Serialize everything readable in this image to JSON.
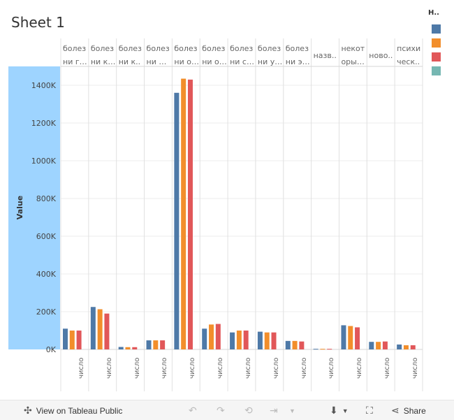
{
  "title": "Sheet 1",
  "legend": {
    "title": "Н..",
    "colors": [
      "#4e79a7",
      "#f28e2b",
      "#e15759",
      "#76b7b2"
    ]
  },
  "chart_data": {
    "type": "bar",
    "ylabel": "Value",
    "ylim": [
      0,
      1500000
    ],
    "yticks": [
      {
        "value": 0,
        "label": "0K"
      },
      {
        "value": 200000,
        "label": "200K"
      },
      {
        "value": 400000,
        "label": "400K"
      },
      {
        "value": 600000,
        "label": "600K"
      },
      {
        "value": 800000,
        "label": "800K"
      },
      {
        "value": 1000000,
        "label": "1000K"
      },
      {
        "value": 1200000,
        "label": "1200K"
      },
      {
        "value": 1400000,
        "label": "1400K"
      }
    ],
    "series_colors": [
      "#4e79a7",
      "#f28e2b",
      "#e15759"
    ],
    "panels": [
      {
        "header": [
          "болез",
          "ни гл.."
        ],
        "category": "число",
        "values": [
          110000,
          100000,
          100000
        ]
      },
      {
        "header": [
          "болез",
          "ни ко.."
        ],
        "category": "число",
        "values": [
          225000,
          213000,
          190000
        ]
      },
      {
        "header": [
          "болез",
          "ни к.."
        ],
        "category": "число",
        "values": [
          13000,
          12000,
          12000
        ]
      },
      {
        "header": [
          "болез",
          "ни не.."
        ],
        "category": "число",
        "values": [
          48000,
          48000,
          48000
        ]
      },
      {
        "header": [
          "болез",
          "ни ор.."
        ],
        "category": "число",
        "values": [
          1360000,
          1435000,
          1430000
        ]
      },
      {
        "header": [
          "болез",
          "ни ор.."
        ],
        "category": "число",
        "values": [
          110000,
          132000,
          135000
        ]
      },
      {
        "header": [
          "болез",
          "ни си.."
        ],
        "category": "число",
        "values": [
          90000,
          100000,
          100000
        ]
      },
      {
        "header": [
          "болез",
          "ни ух.."
        ],
        "category": "число",
        "values": [
          94000,
          90000,
          90000
        ]
      },
      {
        "header": [
          "болез",
          "ни эн.."
        ],
        "category": "число",
        "values": [
          45000,
          45000,
          42000
        ]
      },
      {
        "header": [
          "назв.."
        ],
        "category": "число",
        "values": [
          3000,
          3000,
          3000
        ]
      },
      {
        "header": [
          "некот",
          "орые.."
        ],
        "category": "число",
        "values": [
          128000,
          124000,
          117000
        ]
      },
      {
        "header": [
          "ново.."
        ],
        "category": "число",
        "values": [
          40000,
          40000,
          42000
        ]
      },
      {
        "header": [
          "психи",
          "ческ.."
        ],
        "category": "число",
        "values": [
          26000,
          22000,
          22000
        ]
      }
    ]
  },
  "toolbar": {
    "view_label": "View on Tableau Public",
    "share_label": "Share"
  }
}
